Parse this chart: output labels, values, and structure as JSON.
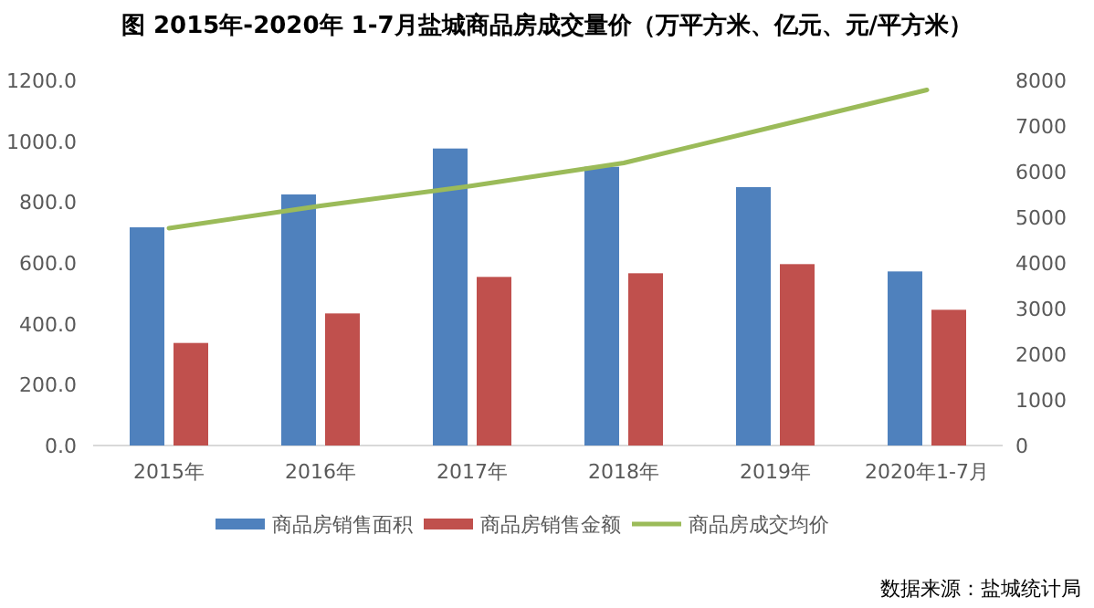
{
  "chart_data": {
    "type": "bar",
    "title": "图 2015年-2020年 1-7月盐城商品房成交量价（万平方米、亿元、元/平方米）",
    "categories": [
      "2015年",
      "2016年",
      "2017年",
      "2018年",
      "2019年",
      "2020年1-7月"
    ],
    "series": [
      {
        "name": "商品房销售面积",
        "color": "#4f81bd",
        "values": [
          717,
          825,
          976,
          916,
          849,
          572
        ]
      },
      {
        "name": "商品房销售金额",
        "color": "#c0504d",
        "values": [
          337,
          434,
          554,
          566,
          596,
          446
        ]
      },
      {
        "name": "商品房成交均价",
        "color": "#9bbb59",
        "type": "line",
        "axis": "y2",
        "values": [
          4760,
          5250,
          5690,
          6190,
          6990,
          7790
        ]
      }
    ],
    "ylim": [
      0,
      1200
    ],
    "yticks": [
      {
        "value": 0,
        "label": "0.0"
      },
      {
        "value": 200,
        "label": "200.0"
      },
      {
        "value": 400,
        "label": "400.0"
      },
      {
        "value": 600,
        "label": "600.0"
      },
      {
        "value": 800,
        "label": "800.0"
      },
      {
        "value": 1000,
        "label": "1000.0"
      },
      {
        "value": 1200,
        "label": "1200.0"
      }
    ],
    "y2lim": [
      0,
      8000
    ],
    "y2ticks": [
      0,
      1000,
      2000,
      3000,
      4000,
      5000,
      6000,
      7000,
      8000
    ],
    "legend": "bottom",
    "grid": false,
    "annotations": [
      "数据来源：盐城统计局"
    ]
  }
}
